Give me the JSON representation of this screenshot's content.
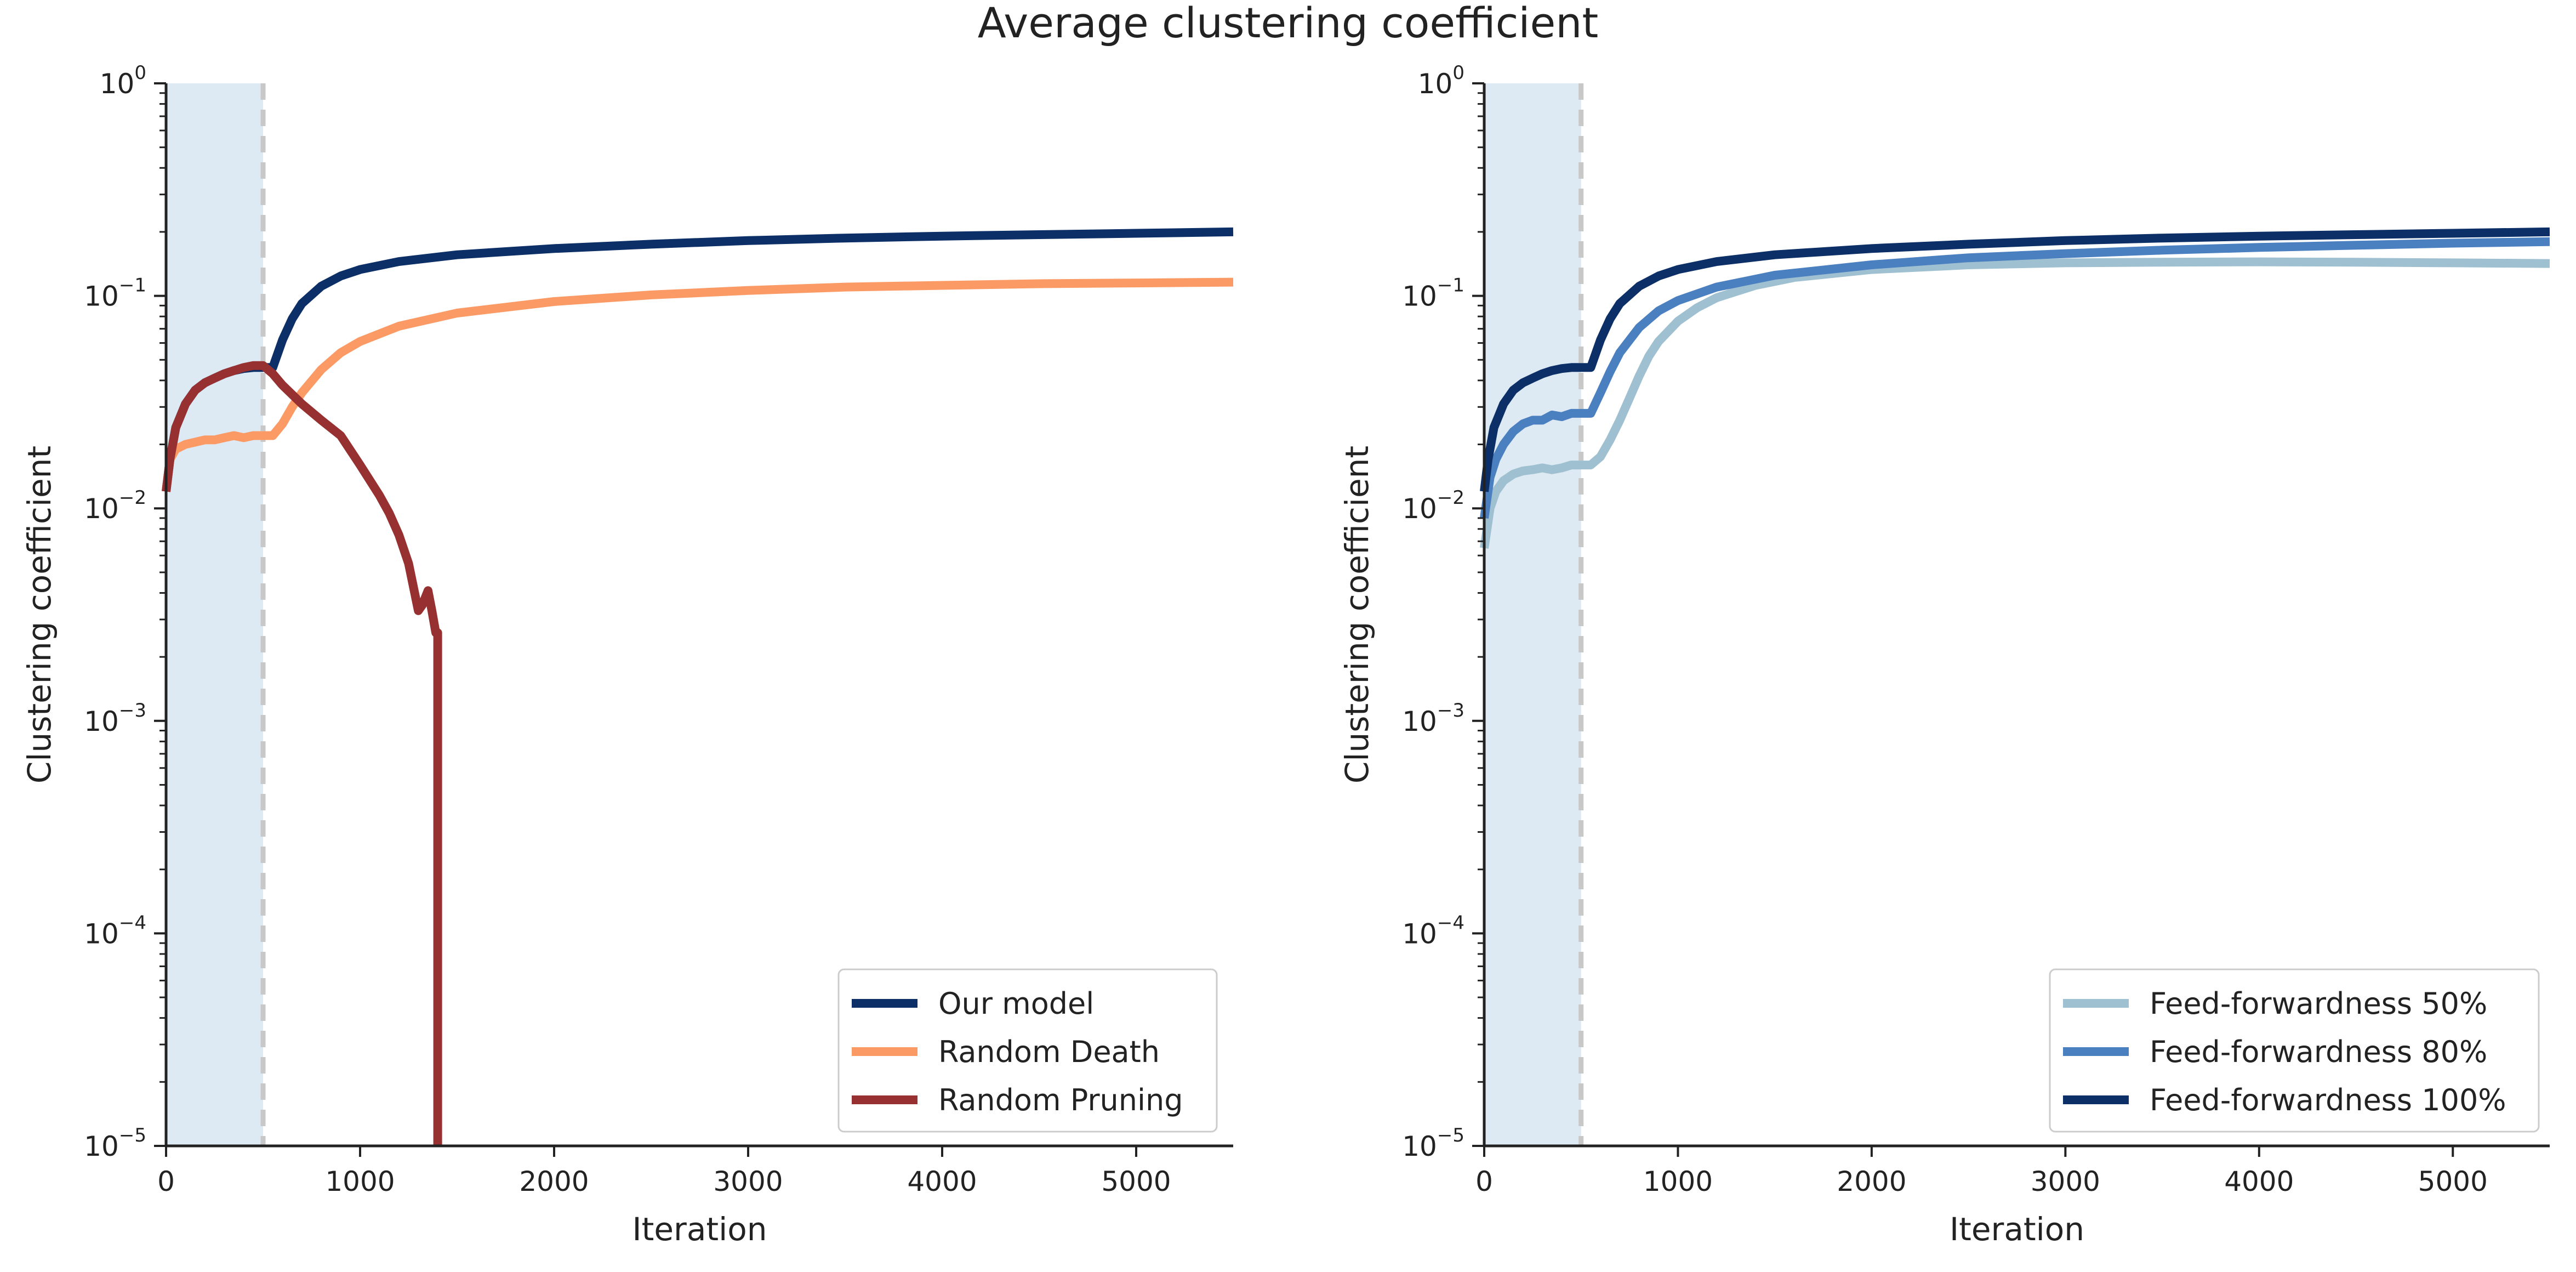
{
  "title": "Average clustering coefficient",
  "colors": {
    "our_model": "#0b2f66",
    "random_death": "#fc9a66",
    "random_pruning": "#973030",
    "ff50": "#9fc0d0",
    "ff80": "#4a7fc0",
    "ff100": "#0b2f66",
    "shade": "#dde9f3",
    "vline": "#c8c8c8",
    "axis": "#222222"
  },
  "chart_data": [
    {
      "type": "line",
      "xlabel": "Iteration",
      "ylabel": "Clustering coefficient",
      "xlim": [
        0,
        5500
      ],
      "ylim": [
        1e-05,
        1
      ],
      "yscale": "log",
      "xticks": [
        0,
        1000,
        2000,
        3000,
        4000,
        5000
      ],
      "xtick_labels": [
        "0",
        "1000",
        "2000",
        "3000",
        "4000",
        "5000"
      ],
      "yticks": [
        {
          "base": "10",
          "exp": "0"
        },
        {
          "base": "10",
          "exp": "−1"
        },
        {
          "base": "10",
          "exp": "−2"
        },
        {
          "base": "10",
          "exp": "−3"
        },
        {
          "base": "10",
          "exp": "−4"
        },
        {
          "base": "10",
          "exp": "−5"
        }
      ],
      "shaded_region": [
        0,
        500
      ],
      "vline_x": 500,
      "legend_position": "lower-right",
      "series": [
        {
          "name": "Our model",
          "color_key": "our_model",
          "points": [
            [
              0,
              0.012
            ],
            [
              20,
              0.017
            ],
            [
              50,
              0.024
            ],
            [
              100,
              0.031
            ],
            [
              150,
              0.036
            ],
            [
              200,
              0.039
            ],
            [
              250,
              0.041
            ],
            [
              300,
              0.043
            ],
            [
              350,
              0.0445
            ],
            [
              400,
              0.0455
            ],
            [
              450,
              0.046
            ],
            [
              500,
              0.046
            ],
            [
              550,
              0.046
            ],
            [
              600,
              0.062
            ],
            [
              650,
              0.078
            ],
            [
              700,
              0.092
            ],
            [
              800,
              0.111
            ],
            [
              900,
              0.124
            ],
            [
              1000,
              0.133
            ],
            [
              1200,
              0.145
            ],
            [
              1500,
              0.156
            ],
            [
              2000,
              0.167
            ],
            [
              2500,
              0.175
            ],
            [
              3000,
              0.182
            ],
            [
              3500,
              0.187
            ],
            [
              4000,
              0.191
            ],
            [
              4500,
              0.194
            ],
            [
              5000,
              0.197
            ],
            [
              5500,
              0.2
            ]
          ]
        },
        {
          "name": "Random Death",
          "color_key": "random_death",
          "points": [
            [
              0,
              0.012
            ],
            [
              20,
              0.017
            ],
            [
              50,
              0.019
            ],
            [
              100,
              0.02
            ],
            [
              150,
              0.0205
            ],
            [
              200,
              0.021
            ],
            [
              250,
              0.021
            ],
            [
              300,
              0.0215
            ],
            [
              350,
              0.022
            ],
            [
              400,
              0.0215
            ],
            [
              450,
              0.022
            ],
            [
              500,
              0.022
            ],
            [
              550,
              0.022
            ],
            [
              600,
              0.025
            ],
            [
              650,
              0.03
            ],
            [
              700,
              0.035
            ],
            [
              800,
              0.045
            ],
            [
              900,
              0.054
            ],
            [
              1000,
              0.061
            ],
            [
              1200,
              0.072
            ],
            [
              1500,
              0.083
            ],
            [
              2000,
              0.094
            ],
            [
              2500,
              0.101
            ],
            [
              3000,
              0.106
            ],
            [
              3500,
              0.11
            ],
            [
              4000,
              0.112
            ],
            [
              4500,
              0.114
            ],
            [
              5000,
              0.115
            ],
            [
              5500,
              0.116
            ]
          ]
        },
        {
          "name": "Random Pruning",
          "color_key": "random_pruning",
          "points": [
            [
              0,
              0.012
            ],
            [
              20,
              0.017
            ],
            [
              50,
              0.024
            ],
            [
              100,
              0.031
            ],
            [
              150,
              0.036
            ],
            [
              200,
              0.039
            ],
            [
              250,
              0.041
            ],
            [
              300,
              0.043
            ],
            [
              350,
              0.0445
            ],
            [
              400,
              0.046
            ],
            [
              450,
              0.047
            ],
            [
              500,
              0.047
            ],
            [
              550,
              0.043
            ],
            [
              600,
              0.038
            ],
            [
              700,
              0.031
            ],
            [
              800,
              0.026
            ],
            [
              900,
              0.022
            ],
            [
              1000,
              0.016
            ],
            [
              1100,
              0.0115
            ],
            [
              1150,
              0.0095
            ],
            [
              1200,
              0.0075
            ],
            [
              1250,
              0.0055
            ],
            [
              1300,
              0.0033
            ],
            [
              1320,
              0.0035
            ],
            [
              1350,
              0.0041
            ],
            [
              1370,
              0.0033
            ],
            [
              1390,
              0.0026
            ],
            [
              1400,
              0.0026
            ],
            [
              1400,
              1e-05
            ]
          ]
        }
      ]
    },
    {
      "type": "line",
      "xlabel": "Iteration",
      "ylabel": "Clustering coefficient",
      "xlim": [
        0,
        5500
      ],
      "ylim": [
        1e-05,
        1
      ],
      "yscale": "log",
      "xticks": [
        0,
        1000,
        2000,
        3000,
        4000,
        5000
      ],
      "xtick_labels": [
        "0",
        "1000",
        "2000",
        "3000",
        "4000",
        "5000"
      ],
      "yticks": [
        {
          "base": "10",
          "exp": "0"
        },
        {
          "base": "10",
          "exp": "−1"
        },
        {
          "base": "10",
          "exp": "−2"
        },
        {
          "base": "10",
          "exp": "−3"
        },
        {
          "base": "10",
          "exp": "−4"
        },
        {
          "base": "10",
          "exp": "−5"
        }
      ],
      "shaded_region": [
        0,
        500
      ],
      "vline_x": 500,
      "legend_position": "lower-right",
      "series": [
        {
          "name": "Feed-forwardness 50%",
          "color_key": "ff50",
          "points": [
            [
              0,
              0.0065
            ],
            [
              30,
              0.01
            ],
            [
              60,
              0.012
            ],
            [
              100,
              0.0135
            ],
            [
              150,
              0.0145
            ],
            [
              200,
              0.015
            ],
            [
              250,
              0.0152
            ],
            [
              300,
              0.0155
            ],
            [
              350,
              0.0152
            ],
            [
              400,
              0.0155
            ],
            [
              450,
              0.016
            ],
            [
              500,
              0.016
            ],
            [
              550,
              0.016
            ],
            [
              600,
              0.0175
            ],
            [
              650,
              0.021
            ],
            [
              700,
              0.026
            ],
            [
              750,
              0.033
            ],
            [
              800,
              0.042
            ],
            [
              850,
              0.052
            ],
            [
              900,
              0.061
            ],
            [
              1000,
              0.076
            ],
            [
              1100,
              0.088
            ],
            [
              1200,
              0.098
            ],
            [
              1400,
              0.112
            ],
            [
              1600,
              0.122
            ],
            [
              2000,
              0.133
            ],
            [
              2500,
              0.14
            ],
            [
              3000,
              0.143
            ],
            [
              3500,
              0.144
            ],
            [
              4000,
              0.1445
            ],
            [
              4500,
              0.144
            ],
            [
              5000,
              0.143
            ],
            [
              5500,
              0.142
            ]
          ]
        },
        {
          "name": "Feed-forwardness 80%",
          "color_key": "ff80",
          "points": [
            [
              0,
              0.009
            ],
            [
              30,
              0.014
            ],
            [
              60,
              0.017
            ],
            [
              100,
              0.02
            ],
            [
              150,
              0.023
            ],
            [
              200,
              0.025
            ],
            [
              250,
              0.026
            ],
            [
              300,
              0.026
            ],
            [
              350,
              0.0275
            ],
            [
              400,
              0.027
            ],
            [
              450,
              0.028
            ],
            [
              500,
              0.028
            ],
            [
              550,
              0.028
            ],
            [
              600,
              0.035
            ],
            [
              650,
              0.044
            ],
            [
              700,
              0.054
            ],
            [
              800,
              0.071
            ],
            [
              900,
              0.085
            ],
            [
              1000,
              0.095
            ],
            [
              1200,
              0.11
            ],
            [
              1500,
              0.125
            ],
            [
              2000,
              0.14
            ],
            [
              2500,
              0.151
            ],
            [
              3000,
              0.158
            ],
            [
              3500,
              0.164
            ],
            [
              4000,
              0.169
            ],
            [
              4500,
              0.173
            ],
            [
              5000,
              0.177
            ],
            [
              5500,
              0.18
            ]
          ]
        },
        {
          "name": "Feed-forwardness 100%",
          "color_key": "ff100",
          "points": [
            [
              0,
              0.012
            ],
            [
              20,
              0.017
            ],
            [
              50,
              0.024
            ],
            [
              100,
              0.031
            ],
            [
              150,
              0.036
            ],
            [
              200,
              0.039
            ],
            [
              250,
              0.041
            ],
            [
              300,
              0.043
            ],
            [
              350,
              0.0445
            ],
            [
              400,
              0.0455
            ],
            [
              450,
              0.046
            ],
            [
              500,
              0.046
            ],
            [
              550,
              0.046
            ],
            [
              600,
              0.062
            ],
            [
              650,
              0.078
            ],
            [
              700,
              0.092
            ],
            [
              800,
              0.111
            ],
            [
              900,
              0.124
            ],
            [
              1000,
              0.133
            ],
            [
              1200,
              0.145
            ],
            [
              1500,
              0.156
            ],
            [
              2000,
              0.167
            ],
            [
              2500,
              0.175
            ],
            [
              3000,
              0.182
            ],
            [
              3500,
              0.187
            ],
            [
              4000,
              0.191
            ],
            [
              4500,
              0.194
            ],
            [
              5000,
              0.197
            ],
            [
              5500,
              0.2
            ]
          ]
        }
      ]
    }
  ]
}
